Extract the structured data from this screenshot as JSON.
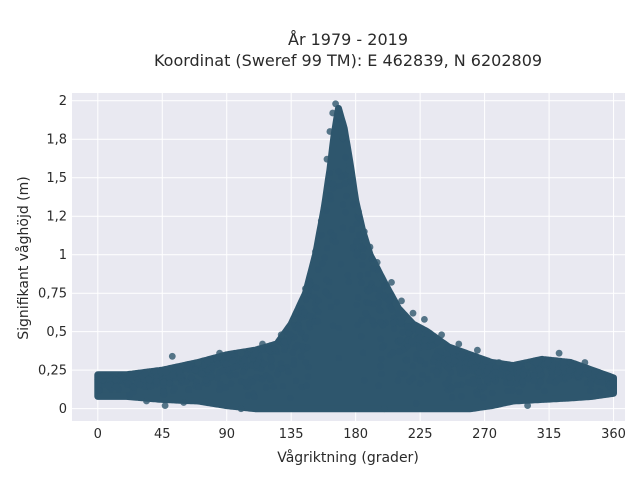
{
  "chart_data": {
    "type": "scatter",
    "title": "År 1979 - 2019",
    "subtitle": "Koordinat (Sweref 99 TM): E 462839, N 6202809",
    "xlabel": "Vågriktning (grader)",
    "ylabel": "Signifikant våghöjd (m)",
    "xlim": [
      -18,
      368
    ],
    "ylim": [
      -0.08,
      2.05
    ],
    "x_ticks": [
      0,
      45,
      90,
      135,
      180,
      225,
      270,
      315,
      360
    ],
    "x_tick_labels": [
      "0",
      "45",
      "90",
      "135",
      "180",
      "225",
      "270",
      "315",
      "360"
    ],
    "y_ticks": [
      0,
      0.25,
      0.5,
      0.75,
      1,
      1.25,
      1.5,
      1.75,
      2
    ],
    "y_tick_labels": [
      "0",
      "0,25",
      "0,5",
      "0,75",
      "1",
      "1,2",
      "1,5",
      "1,8",
      "2"
    ],
    "grid": true,
    "background": "#e9e9f1",
    "marker_color": "#2e566d",
    "envelope": {
      "x": [
        0,
        20,
        45,
        70,
        90,
        110,
        125,
        135,
        145,
        152,
        158,
        162,
        165,
        168,
        172,
        176,
        180,
        185,
        190,
        200,
        210,
        220,
        230,
        245,
        260,
        275,
        290,
        310,
        330,
        345,
        360
      ],
      "y_upper": [
        0.22,
        0.22,
        0.25,
        0.3,
        0.35,
        0.38,
        0.42,
        0.55,
        0.75,
        1.0,
        1.3,
        1.55,
        1.78,
        1.95,
        1.82,
        1.6,
        1.35,
        1.15,
        1.0,
        0.82,
        0.65,
        0.55,
        0.5,
        0.4,
        0.35,
        0.3,
        0.28,
        0.32,
        0.3,
        0.25,
        0.2
      ],
      "y_lower": [
        0.08,
        0.08,
        0.06,
        0.05,
        0.02,
        0,
        0,
        0,
        0,
        0,
        0,
        0,
        0,
        0,
        0,
        0,
        0,
        0,
        0,
        0,
        0,
        0,
        0,
        0,
        0,
        0.02,
        0.05,
        0.06,
        0.07,
        0.08,
        0.1
      ]
    },
    "points": [
      {
        "x": 166,
        "y": 1.98
      },
      {
        "x": 164,
        "y": 1.92
      },
      {
        "x": 169,
        "y": 1.9
      },
      {
        "x": 162,
        "y": 1.8
      },
      {
        "x": 171,
        "y": 1.76
      },
      {
        "x": 160,
        "y": 1.62
      },
      {
        "x": 175,
        "y": 1.55
      },
      {
        "x": 178,
        "y": 1.38
      },
      {
        "x": 182,
        "y": 1.28
      },
      {
        "x": 186,
        "y": 1.15
      },
      {
        "x": 190,
        "y": 1.05
      },
      {
        "x": 195,
        "y": 0.95
      },
      {
        "x": 205,
        "y": 0.82
      },
      {
        "x": 212,
        "y": 0.7
      },
      {
        "x": 220,
        "y": 0.62
      },
      {
        "x": 228,
        "y": 0.58
      },
      {
        "x": 240,
        "y": 0.48
      },
      {
        "x": 252,
        "y": 0.42
      },
      {
        "x": 265,
        "y": 0.38
      },
      {
        "x": 280,
        "y": 0.3
      },
      {
        "x": 300,
        "y": 0.28
      },
      {
        "x": 322,
        "y": 0.36
      },
      {
        "x": 340,
        "y": 0.3
      },
      {
        "x": 52,
        "y": 0.34
      },
      {
        "x": 70,
        "y": 0.3
      },
      {
        "x": 85,
        "y": 0.36
      },
      {
        "x": 100,
        "y": 0.36
      },
      {
        "x": 115,
        "y": 0.42
      },
      {
        "x": 128,
        "y": 0.48
      },
      {
        "x": 137,
        "y": 0.58
      },
      {
        "x": 145,
        "y": 0.78
      },
      {
        "x": 152,
        "y": 1.02
      },
      {
        "x": 156,
        "y": 1.22
      },
      {
        "x": 47,
        "y": 0.02
      },
      {
        "x": 60,
        "y": 0.04
      },
      {
        "x": 34,
        "y": 0.05
      },
      {
        "x": 100,
        "y": 0.0
      },
      {
        "x": 200,
        "y": 0.0
      },
      {
        "x": 300,
        "y": 0.02
      }
    ]
  }
}
